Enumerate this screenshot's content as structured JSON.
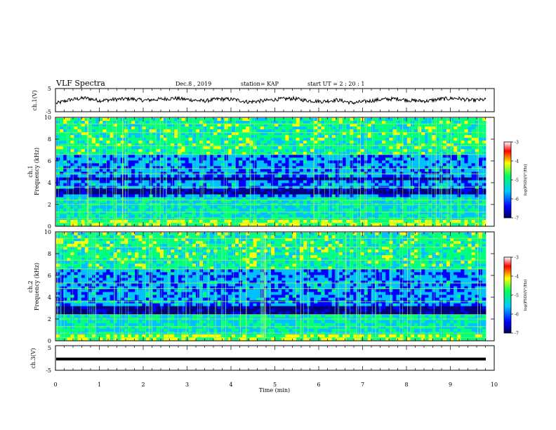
{
  "header": {
    "title": "VLF Spectra",
    "date": "Dec.8  , 2019",
    "station": "station= KAP",
    "start": "start  UT  =   2 : 20 : 1"
  },
  "chart_data": [
    {
      "id": "ch1-waveform",
      "type": "line",
      "ylabel": "ch.1(V)",
      "ylim": [
        -5,
        5
      ],
      "yticks": [
        "5",
        "-5"
      ],
      "xlim": [
        0,
        10
      ],
      "series": [
        {
          "values": [
            -1.5,
            0.2,
            0.9,
            -0.2,
            0.3,
            0.6,
            -0.1,
            0.4,
            0.8,
            0.2,
            -0.4,
            0.5,
            0.3,
            -0.8,
            -0.3,
            0.4,
            0.7,
            -0.2,
            -0.6,
            0.1,
            -1.2,
            -0.5,
            0.3,
            0.6,
            -0.2,
            -0.4,
            0.5,
            0.8,
            -0.1,
            0.2
          ]
        }
      ]
    },
    {
      "id": "ch1-spectrogram",
      "type": "heatmap",
      "ylabel": "ch.1\nFrequency  (kHz)",
      "ylim": [
        0,
        10
      ],
      "yticks": [
        0,
        2,
        4,
        6,
        8,
        10
      ],
      "xlim": [
        0,
        10
      ],
      "colorbar": {
        "label": "log(PSD)(V²/Hz)",
        "range": [
          -7,
          -3
        ],
        "ticks": [
          "-3",
          "-4",
          "-5",
          "-6",
          "-7"
        ]
      }
    },
    {
      "id": "ch2-spectrogram",
      "type": "heatmap",
      "ylabel": "ch.2\nFrequency  (kHz)",
      "ylim": [
        0,
        10
      ],
      "yticks": [
        0,
        2,
        4,
        6,
        8,
        10
      ],
      "xlim": [
        0,
        10
      ],
      "colorbar": {
        "label": "log(PSD)(V²/Hz)",
        "range": [
          -7,
          -3
        ],
        "ticks": [
          "-3",
          "-4",
          "-5",
          "-6",
          "-7"
        ]
      }
    },
    {
      "id": "ch3-waveform",
      "type": "line",
      "ylabel": "ch.3(V)",
      "ylim": [
        -5,
        5
      ],
      "yticks": [
        "5",
        "-5"
      ],
      "xlim": [
        0,
        10
      ],
      "series": [
        {
          "values": [
            -1.3,
            -1.3
          ]
        }
      ]
    }
  ],
  "xaxis": {
    "label": "Time  (min)",
    "ticks": [
      "0",
      "1",
      "2",
      "3",
      "4",
      "5",
      "6",
      "7",
      "8",
      "9",
      "10"
    ]
  },
  "colors": {
    "waveform": "#000000",
    "scale": [
      "#000080",
      "#0000ff",
      "#00c0ff",
      "#00ff80",
      "#ffff00",
      "#ff0000",
      "#ffffff"
    ]
  }
}
